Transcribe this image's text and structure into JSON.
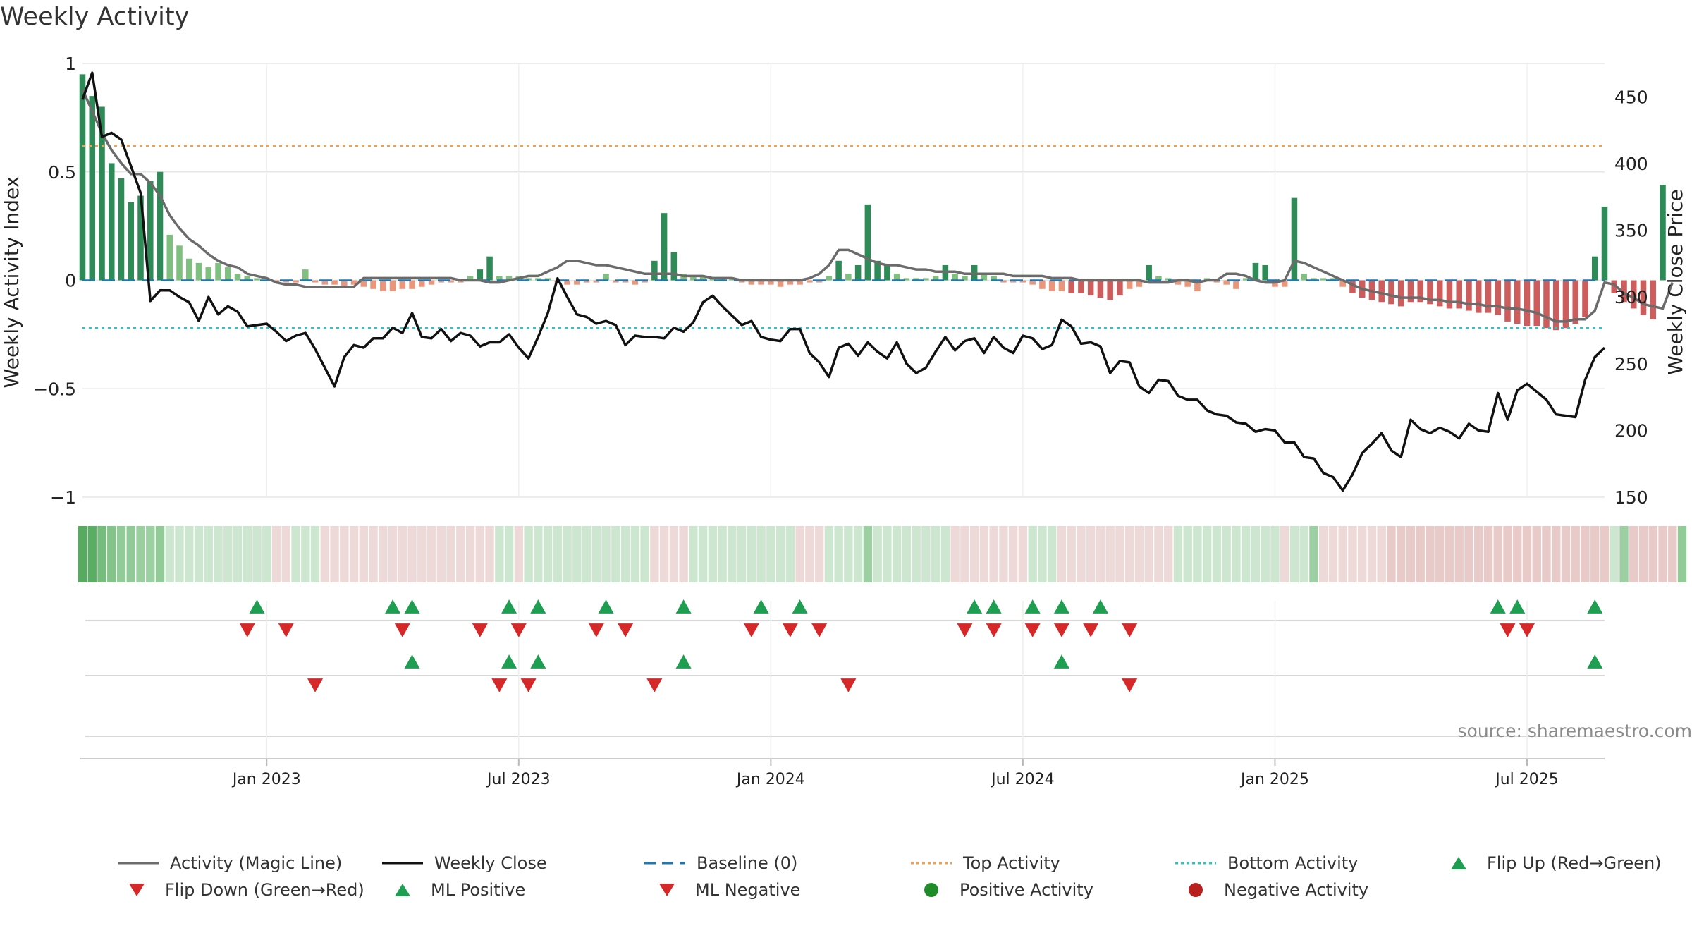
{
  "chart_data": {
    "type": "bar",
    "title": "Weekly Activity",
    "ylabel_left": "Weekly Activity Index",
    "ylabel_right": "Weekly Close Price",
    "ylim_left": [
      -1,
      1
    ],
    "ylim_right": [
      150,
      475
    ],
    "left_ticks": [
      1,
      0.5,
      0,
      -0.5,
      -1
    ],
    "left_tick_labels": [
      "1",
      "0.5",
      "0",
      "−0.5",
      "−1"
    ],
    "right_ticks": [
      450,
      400,
      350,
      300,
      250,
      200,
      150
    ],
    "right_tick_labels": [
      "450",
      "400",
      "350",
      "300",
      "250",
      "200",
      "150"
    ],
    "x_ticks": [
      {
        "week": 19,
        "label": "Jan 2023"
      },
      {
        "week": 45,
        "label": "Jul 2023"
      },
      {
        "week": 71,
        "label": "Jan 2024"
      },
      {
        "week": 97,
        "label": "Jul 2024"
      },
      {
        "week": 123,
        "label": "Jan 2025"
      },
      {
        "week": 149,
        "label": "Jul 2025"
      }
    ],
    "weeks": 158,
    "top_activity": 0.62,
    "bottom_activity": -0.22,
    "activity": [
      0.95,
      0.85,
      0.8,
      0.54,
      0.47,
      0.36,
      0.39,
      0.46,
      0.5,
      0.21,
      0.16,
      0.1,
      0.08,
      0.06,
      0.08,
      0.06,
      0.03,
      0.02,
      0.01,
      0,
      -0.01,
      -0.01,
      -0.01,
      0.05,
      -0.01,
      -0.02,
      -0.02,
      -0.03,
      -0.02,
      -0.03,
      -0.04,
      -0.05,
      -0.05,
      -0.04,
      -0.04,
      -0.03,
      -0.02,
      -0.01,
      -0.01,
      -0.01,
      0.02,
      0.05,
      0.11,
      0.02,
      0.02,
      0.02,
      0.01,
      0.01,
      0.01,
      -0.01,
      -0.02,
      -0.02,
      -0.01,
      -0.01,
      0.03,
      -0.01,
      -0.01,
      -0.02,
      -0.01,
      0.09,
      0.31,
      0.13,
      0.03,
      0.02,
      0.02,
      0.01,
      0.01,
      0.01,
      -0.01,
      -0.02,
      -0.02,
      -0.02,
      -0.03,
      -0.02,
      -0.02,
      -0.01,
      -0.01,
      0.02,
      0.09,
      0.03,
      0.07,
      0.35,
      0.09,
      0.07,
      0.03,
      0.01,
      0.01,
      0.01,
      0.02,
      0.07,
      0.03,
      0.02,
      0.07,
      0.03,
      0.02,
      -0.01,
      -0.01,
      -0.01,
      -0.02,
      -0.04,
      -0.05,
      -0.05,
      -0.06,
      -0.06,
      -0.07,
      -0.08,
      -0.09,
      -0.07,
      -0.04,
      -0.03,
      0.07,
      0.02,
      0.01,
      -0.02,
      -0.03,
      -0.05,
      0.01,
      -0.01,
      -0.02,
      -0.04,
      0.01,
      0.08,
      0.07,
      -0.03,
      -0.03,
      0.38,
      0.03,
      0.01,
      0.01,
      0.01,
      -0.03,
      -0.06,
      -0.08,
      -0.09,
      -0.1,
      -0.11,
      -0.12,
      -0.1,
      -0.1,
      -0.11,
      -0.12,
      -0.13,
      -0.13,
      -0.14,
      -0.15,
      -0.15,
      -0.16,
      -0.19,
      -0.2,
      -0.21,
      -0.21,
      -0.22,
      -0.23,
      -0.22,
      -0.2,
      -0.17,
      0.11,
      0.34,
      -0.06,
      -0.1,
      -0.13,
      -0.16,
      -0.18,
      0.44
    ],
    "magic_line": [
      0.88,
      0.78,
      0.68,
      0.6,
      0.54,
      0.49,
      0.49,
      0.45,
      0.39,
      0.3,
      0.24,
      0.19,
      0.16,
      0.12,
      0.09,
      0.07,
      0.06,
      0.03,
      0.02,
      0.01,
      -0.01,
      -0.02,
      -0.02,
      -0.03,
      -0.03,
      -0.03,
      -0.03,
      -0.03,
      -0.03,
      0.01,
      0.01,
      0.01,
      0.01,
      0.01,
      0.01,
      0.01,
      0.01,
      0.01,
      0.01,
      0,
      0,
      0,
      -0.01,
      -0.01,
      0,
      0.01,
      0.02,
      0.02,
      0.04,
      0.06,
      0.09,
      0.09,
      0.08,
      0.07,
      0.07,
      0.06,
      0.05,
      0.04,
      0.03,
      0.03,
      0.03,
      0.03,
      0.02,
      0.02,
      0.02,
      0.01,
      0.01,
      0.01,
      0,
      0,
      0,
      0,
      0,
      0,
      0,
      0.01,
      0.03,
      0.07,
      0.14,
      0.14,
      0.12,
      0.1,
      0.08,
      0.07,
      0.07,
      0.06,
      0.05,
      0.05,
      0.04,
      0.04,
      0.04,
      0.03,
      0.03,
      0.03,
      0.03,
      0.03,
      0.02,
      0.02,
      0.02,
      0.02,
      0.01,
      0.01,
      0.01,
      0,
      0,
      0,
      0,
      0,
      0,
      0,
      -0.01,
      -0.01,
      -0.01,
      0,
      0,
      -0.01,
      0,
      0,
      0.03,
      0.03,
      0.02,
      0,
      -0.01,
      -0.01,
      0,
      0.09,
      0.08,
      0.06,
      0.04,
      0.02,
      0,
      -0.02,
      -0.04,
      -0.05,
      -0.06,
      -0.07,
      -0.08,
      -0.08,
      -0.08,
      -0.09,
      -0.09,
      -0.1,
      -0.1,
      -0.11,
      -0.11,
      -0.12,
      -0.12,
      -0.13,
      -0.13,
      -0.14,
      -0.15,
      -0.17,
      -0.19,
      -0.19,
      -0.18,
      -0.18,
      -0.14,
      -0.01,
      -0.02,
      -0.06,
      -0.08,
      -0.11,
      -0.12,
      -0.13,
      -0.01
    ],
    "weekly_close": [
      448,
      468,
      420,
      423,
      418,
      398,
      378,
      297,
      305,
      305,
      300,
      296,
      282,
      300,
      287,
      293,
      289,
      278,
      279,
      280,
      274,
      267,
      271,
      273,
      261,
      247,
      233,
      255,
      264,
      262,
      269,
      269,
      277,
      273,
      288,
      270,
      269,
      276,
      267,
      273,
      271,
      263,
      266,
      266,
      272,
      262,
      254,
      270,
      288,
      314,
      300,
      287,
      285,
      280,
      282,
      279,
      264,
      271,
      270,
      270,
      269,
      277,
      274,
      281,
      296,
      301,
      293,
      286,
      279,
      282,
      270,
      268,
      267,
      276,
      276,
      258,
      251,
      240,
      262,
      265,
      256,
      266,
      259,
      254,
      266,
      250,
      243,
      247,
      259,
      270,
      260,
      267,
      269,
      258,
      270,
      262,
      258,
      271,
      269,
      261,
      264,
      283,
      278,
      265,
      266,
      263,
      243,
      252,
      251,
      233,
      228,
      238,
      237,
      226,
      223,
      223,
      215,
      212,
      211,
      206,
      205,
      199,
      201,
      200,
      191,
      191,
      180,
      179,
      168,
      165,
      155,
      167,
      183,
      190,
      198,
      185,
      180,
      208,
      201,
      198,
      202,
      199,
      194,
      205,
      200,
      199,
      228,
      208,
      230,
      235,
      229,
      223,
      212,
      211,
      210,
      238,
      255,
      262
    ],
    "ribbon_colors": [
      "#56ab60",
      "#5aae64",
      "#75bd7d",
      "#84c48b",
      "#92ca98",
      "#91c998",
      "#9ccf9f",
      "#9ccfa1",
      "#92ca98",
      "#cde6cf",
      "#cde6cf",
      "#cde6cf",
      "#cde6cf",
      "#cde6cf",
      "#cde6cf",
      "#cde6cf",
      "#cde6cf",
      "#cde6cf",
      "#cde6cf",
      "#cde6cf",
      "#edd9d7",
      "#edd9d7",
      "#cde6cf",
      "#cde6cf",
      "#cde6cf",
      "#edd9d7",
      "#edd9d7",
      "#edd9d7",
      "#edd9d7",
      "#edd9d7",
      "#edd9d7",
      "#edd9d7",
      "#edd9d7",
      "#edd9d7",
      "#edd9d7",
      "#edd9d7",
      "#edd9d7",
      "#edd9d7",
      "#edd9d7",
      "#edd9d7",
      "#edd9d7",
      "#edd9d7",
      "#edd9d7",
      "#cde6cf",
      "#cde6cf",
      "#edd9d7",
      "#cde6cf",
      "#cde6cf",
      "#cde6cf",
      "#cde6cf",
      "#cde6cf",
      "#cde6cf",
      "#cde6cf",
      "#cde6cf",
      "#cde6cf",
      "#cde6cf",
      "#cde6cf",
      "#cde6cf",
      "#cde6cf",
      "#edd9d7",
      "#edd9d7",
      "#edd9d7",
      "#edd9d7",
      "#cde6cf",
      "#cde6cf",
      "#cde6cf",
      "#cde6cf",
      "#cde6cf",
      "#cde6cf",
      "#cde6cf",
      "#cde6cf",
      "#cde6cf",
      "#cde6cf",
      "#cde6cf",
      "#edd9d7",
      "#edd9d7",
      "#edd9d7",
      "#cde6cf",
      "#cde6cf",
      "#cde6cf",
      "#cde6cf",
      "#9ccfa1",
      "#cde6cf",
      "#cde6cf",
      "#cde6cf",
      "#cde6cf",
      "#cde6cf",
      "#cde6cf",
      "#cde6cf",
      "#cde6cf",
      "#edd9d7",
      "#edd9d7",
      "#edd9d7",
      "#edd9d7",
      "#edd9d7",
      "#edd9d7",
      "#edd9d7",
      "#edd9d7",
      "#cde6cf",
      "#cde6cf",
      "#cde6cf",
      "#edd9d7",
      "#edd9d7",
      "#edd9d7",
      "#edd9d7",
      "#edd9d7",
      "#edd9d7",
      "#edd9d7",
      "#edd9d7",
      "#edd9d7",
      "#edd9d7",
      "#edd9d7",
      "#edd9d7",
      "#cde6cf",
      "#cde6cf",
      "#cde6cf",
      "#cde6cf",
      "#cde6cf",
      "#cde6cf",
      "#cde6cf",
      "#cde6cf",
      "#cde6cf",
      "#cde6cf",
      "#cde6cf",
      "#edd9d7",
      "#cde6cf",
      "#cde6cf",
      "#9ccfa1",
      "#edd9d7",
      "#edd9d7",
      "#edd9d7",
      "#edd9d7",
      "#edd9d7",
      "#edd9d7",
      "#edd9d7",
      "#e8cbc9",
      "#e8cbc9",
      "#e8cbc9",
      "#e8cbc9",
      "#e8cbc9",
      "#e8cbc9",
      "#e8cbc9",
      "#e8cbc9",
      "#e8cbc9",
      "#e8cbc9",
      "#e8cbc9",
      "#e8cbc9",
      "#e8cbc9",
      "#e8cbc9",
      "#e8cbc9",
      "#e8cbc9",
      "#e8cbc9",
      "#e8cbc9",
      "#e8cbc9",
      "#e8cbc9",
      "#e8cbc9",
      "#e8cbc9",
      "#e8cbc9",
      "#cde6cf",
      "#9ccfa1",
      "#e8cbc9",
      "#e8cbc9",
      "#e8cbc9",
      "#e8cbc9",
      "#e8cbc9",
      "#92ca98"
    ],
    "flip_up_weeks": [
      18,
      32,
      34,
      44,
      47,
      54,
      62,
      70,
      74,
      92,
      94,
      98,
      101,
      105,
      146,
      148,
      156
    ],
    "flip_down_weeks": [
      17,
      21,
      33,
      41,
      45,
      53,
      56,
      69,
      73,
      76,
      91,
      94,
      98,
      101,
      104,
      108,
      147,
      149
    ],
    "ml_positive_weeks": [
      34,
      44,
      47,
      62,
      101,
      156
    ],
    "ml_negative_weeks": [
      24,
      43,
      46,
      59,
      79,
      108
    ],
    "x_range_weeks": [
      0,
      157
    ],
    "legend_position": "bottom",
    "legend": [
      {
        "label": "Activity (Magic Line)",
        "symbol": "solid-line",
        "color": "#6b6b6b"
      },
      {
        "label": "Weekly Close",
        "symbol": "solid-line",
        "color": "#111111"
      },
      {
        "label": "Baseline (0)",
        "symbol": "dashed-line",
        "color": "#1f77b4"
      },
      {
        "label": "Top Activity",
        "symbol": "dotted-line",
        "color": "#f0a050"
      },
      {
        "label": "Bottom Activity",
        "symbol": "dotted-line",
        "color": "#2ec4c4"
      },
      {
        "label": "Flip Up (Red→Green)",
        "symbol": "triangle-up",
        "color": "#1e9e50"
      },
      {
        "label": "Flip Down (Green→Red)",
        "symbol": "triangle-down",
        "color": "#d62828"
      },
      {
        "label": "ML Positive",
        "symbol": "triangle-up",
        "color": "#1e9e50"
      },
      {
        "label": "ML Negative",
        "symbol": "triangle-down",
        "color": "#d62828"
      },
      {
        "label": "Positive Activity",
        "symbol": "circle",
        "color": "#1e8c28"
      },
      {
        "label": "Negative Activity",
        "symbol": "circle",
        "color": "#b82020"
      }
    ]
  },
  "colors": {
    "pos_strong": "#2e8b57",
    "pos_light": "#7fbf7f",
    "neg_strong": "#cd5c5c",
    "neg_light": "#e9967a",
    "grid": "#e6e6e6",
    "axis": "#cccccc"
  },
  "source": "source: sharemaestro.com"
}
